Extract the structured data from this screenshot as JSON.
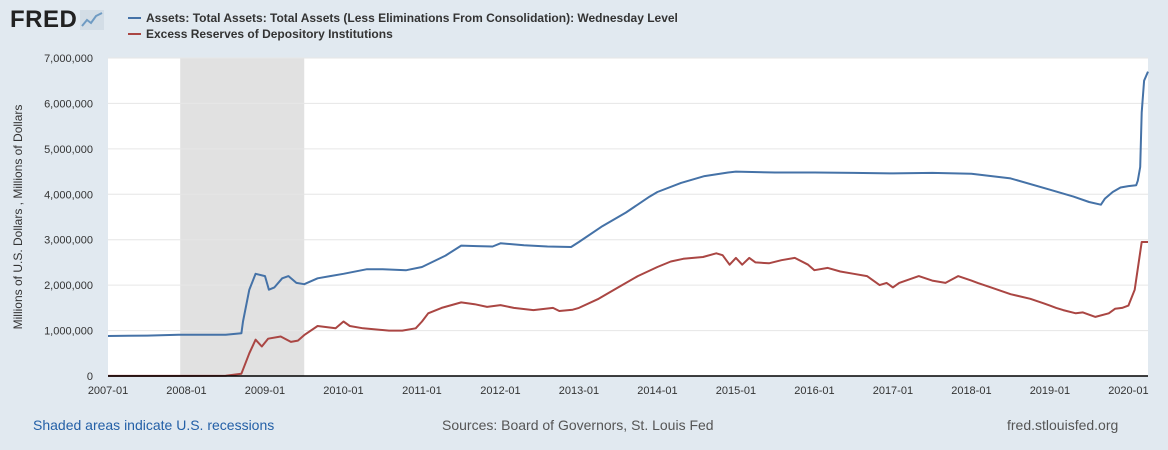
{
  "logo": {
    "text": "FRED",
    "icon": "chart-line-icon"
  },
  "footer": {
    "recessions_note": "Shaded areas indicate U.S. recessions",
    "sources": "Sources: Board of Governors, St. Louis Fed",
    "site": "fred.stlouisfed.org"
  },
  "colors": {
    "background": "#e1e9f0",
    "plot": "#ffffff",
    "grid": "#e6e6e6",
    "recession": "#e1e1e1",
    "assets": "#4572a7",
    "reserves": "#aa4643",
    "link": "#2460a7"
  },
  "chart_data": {
    "type": "line",
    "title": "",
    "ylabel": "Millions of U.S. Dollars , Millions of Dollars",
    "xlabel": "",
    "xlim": [
      2007.0,
      2020.25
    ],
    "ylim": [
      0,
      7000000
    ],
    "yticks": [
      0,
      1000000,
      2000000,
      3000000,
      4000000,
      5000000,
      6000000,
      7000000
    ],
    "ytick_labels": [
      "0",
      "1,000,000",
      "2,000,000",
      "3,000,000",
      "4,000,000",
      "5,000,000",
      "6,000,000",
      "7,000,000"
    ],
    "xticks": [
      2007,
      2008,
      2009,
      2010,
      2011,
      2012,
      2013,
      2014,
      2015,
      2016,
      2017,
      2018,
      2019,
      2020
    ],
    "xtick_labels": [
      "2007-01",
      "2008-01",
      "2009-01",
      "2010-01",
      "2011-01",
      "2012-01",
      "2013-01",
      "2014-01",
      "2015-01",
      "2016-01",
      "2017-01",
      "2018-01",
      "2019-01",
      "2020-01"
    ],
    "recessions": [
      {
        "start": 2007.92,
        "end": 2009.5
      }
    ],
    "series": [
      {
        "name": "Assets: Total Assets: Total Assets (Less Eliminations From Consolidation): Wednesday Level",
        "color": "#4572a7",
        "x": [
          2007.0,
          2007.5,
          2007.9,
          2008.5,
          2008.7,
          2008.72,
          2008.8,
          2008.88,
          2009.0,
          2009.05,
          2009.12,
          2009.22,
          2009.3,
          2009.4,
          2009.5,
          2009.67,
          2009.83,
          2010.0,
          2010.3,
          2010.5,
          2010.8,
          2011.0,
          2011.3,
          2011.5,
          2011.7,
          2011.9,
          2012.0,
          2012.3,
          2012.6,
          2012.9,
          2013.0,
          2013.3,
          2013.6,
          2013.9,
          2014.0,
          2014.3,
          2014.6,
          2014.9,
          2015.0,
          2015.5,
          2016.0,
          2016.5,
          2017.0,
          2017.5,
          2018.0,
          2018.5,
          2019.0,
          2019.3,
          2019.5,
          2019.65,
          2019.7,
          2019.8,
          2019.9,
          2020.0,
          2020.1,
          2020.12,
          2020.15,
          2020.17,
          2020.2,
          2020.25
        ],
        "values": [
          880000,
          890000,
          910000,
          910000,
          940000,
          1200000,
          1900000,
          2250000,
          2200000,
          1900000,
          1950000,
          2150000,
          2200000,
          2050000,
          2020000,
          2150000,
          2200000,
          2250000,
          2350000,
          2350000,
          2330000,
          2400000,
          2650000,
          2870000,
          2860000,
          2850000,
          2920000,
          2880000,
          2850000,
          2840000,
          2950000,
          3300000,
          3600000,
          3950000,
          4050000,
          4250000,
          4400000,
          4480000,
          4500000,
          4480000,
          4480000,
          4470000,
          4460000,
          4470000,
          4450000,
          4350000,
          4100000,
          3950000,
          3830000,
          3770000,
          3900000,
          4050000,
          4150000,
          4180000,
          4200000,
          4300000,
          4600000,
          5800000,
          6500000,
          6700000
        ]
      },
      {
        "name": "Excess Reserves of Depository Institutions",
        "color": "#aa4643",
        "x": [
          2007.0,
          2007.5,
          2008.0,
          2008.5,
          2008.7,
          2008.8,
          2008.88,
          2008.96,
          2009.04,
          2009.2,
          2009.33,
          2009.42,
          2009.5,
          2009.67,
          2009.9,
          2010.0,
          2010.08,
          2010.25,
          2010.58,
          2010.75,
          2010.92,
          2011.0,
          2011.08,
          2011.25,
          2011.5,
          2011.67,
          2011.83,
          2012.0,
          2012.17,
          2012.42,
          2012.67,
          2012.75,
          2012.92,
          2013.0,
          2013.25,
          2013.5,
          2013.75,
          2014.0,
          2014.17,
          2014.33,
          2014.58,
          2014.75,
          2014.83,
          2014.92,
          2015.0,
          2015.08,
          2015.17,
          2015.25,
          2015.42,
          2015.58,
          2015.75,
          2015.92,
          2016.0,
          2016.17,
          2016.33,
          2016.5,
          2016.67,
          2016.83,
          2016.92,
          2017.0,
          2017.08,
          2017.33,
          2017.5,
          2017.67,
          2017.83,
          2018.0,
          2018.08,
          2018.25,
          2018.5,
          2018.75,
          2018.92,
          2019.0,
          2019.08,
          2019.17,
          2019.33,
          2019.42,
          2019.5,
          2019.58,
          2019.75,
          2019.83,
          2019.92,
          2020.0,
          2020.08,
          2020.17,
          2020.25
        ],
        "values": [
          2000,
          2000,
          2000,
          5000,
          50000,
          500000,
          800000,
          650000,
          820000,
          870000,
          750000,
          780000,
          900000,
          1100000,
          1050000,
          1200000,
          1100000,
          1050000,
          1000000,
          1000000,
          1050000,
          1200000,
          1380000,
          1500000,
          1620000,
          1580000,
          1520000,
          1560000,
          1500000,
          1450000,
          1500000,
          1430000,
          1460000,
          1500000,
          1700000,
          1950000,
          2200000,
          2400000,
          2520000,
          2580000,
          2620000,
          2700000,
          2660000,
          2450000,
          2600000,
          2450000,
          2600000,
          2500000,
          2480000,
          2550000,
          2600000,
          2450000,
          2330000,
          2380000,
          2300000,
          2250000,
          2200000,
          2000000,
          2050000,
          1950000,
          2050000,
          2200000,
          2100000,
          2050000,
          2200000,
          2100000,
          2050000,
          1950000,
          1800000,
          1700000,
          1600000,
          1550000,
          1500000,
          1450000,
          1380000,
          1400000,
          1350000,
          1300000,
          1380000,
          1480000,
          1500000,
          1550000,
          1900000,
          2950000,
          2950000
        ]
      }
    ]
  }
}
